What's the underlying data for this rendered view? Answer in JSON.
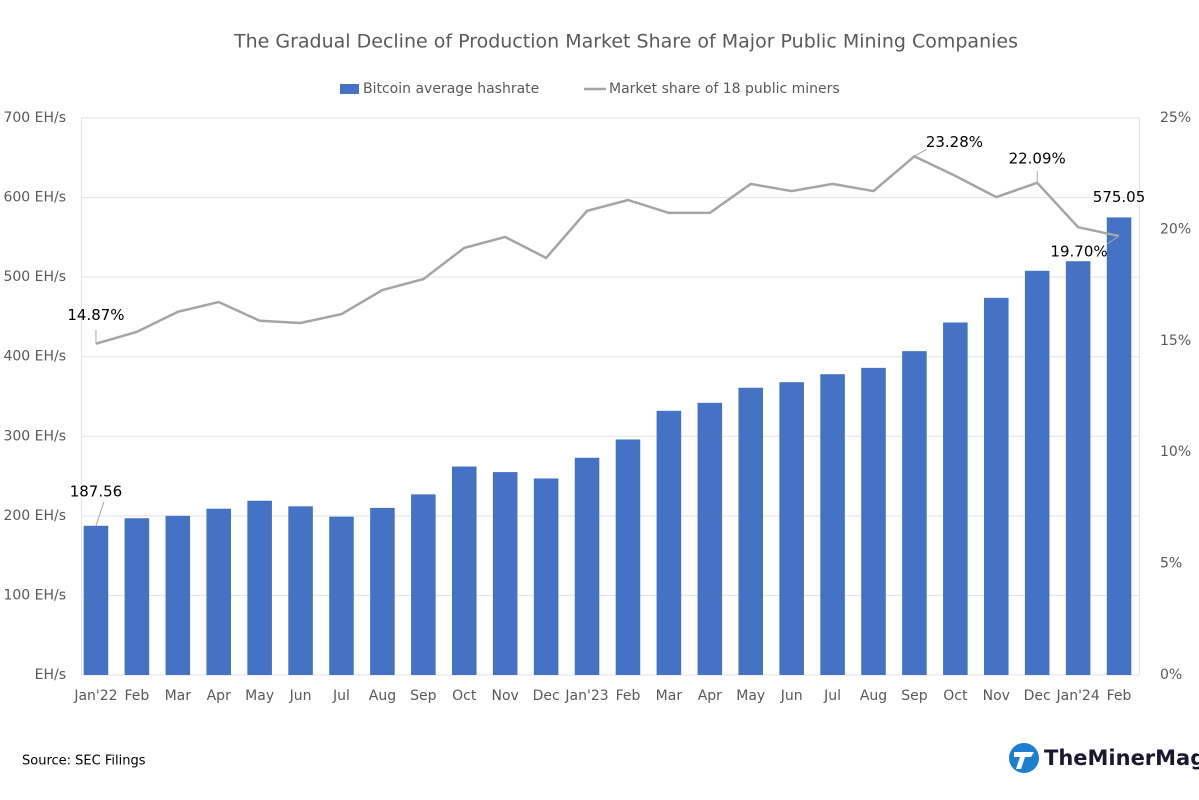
{
  "chart_data": {
    "type": "bar-line",
    "title": "The Gradual Decline of Production Market Share of Major Public Mining Companies",
    "categories": [
      "Jan'22",
      "Feb",
      "Mar",
      "Apr",
      "May",
      "Jun",
      "Jul",
      "Aug",
      "Sep",
      "Oct",
      "Nov",
      "Dec",
      "Jan'23",
      "Feb",
      "Mar",
      "Apr",
      "May",
      "Jun",
      "Jul",
      "Aug",
      "Sep",
      "Oct",
      "Nov",
      "Dec",
      "Jan'24",
      "Feb"
    ],
    "series": [
      {
        "name": "Bitcoin average hashrate",
        "type": "bar",
        "color": "#4472c4",
        "values": [
          187.56,
          197,
          200,
          209,
          219,
          212,
          199,
          210,
          227,
          262,
          255,
          247,
          273,
          296,
          332,
          342,
          361,
          368,
          378,
          386,
          407,
          443,
          474,
          508,
          520,
          575.05
        ],
        "value_labels": [
          "187.56",
          null,
          null,
          null,
          null,
          null,
          null,
          null,
          null,
          null,
          null,
          null,
          null,
          null,
          null,
          null,
          null,
          null,
          null,
          null,
          null,
          null,
          null,
          null,
          null,
          "575.05"
        ]
      },
      {
        "name": "Market share of 18 public miners",
        "type": "line",
        "axis": "y2",
        "color": "#a5a5a5",
        "values": [
          14.87,
          15.4,
          16.3,
          16.74,
          15.9,
          15.8,
          16.2,
          17.28,
          17.77,
          19.17,
          19.66,
          18.72,
          20.83,
          21.32,
          20.74,
          20.74,
          22.04,
          21.72,
          22.04,
          21.72,
          23.28,
          22.4,
          21.45,
          22.09,
          20.1,
          19.7
        ],
        "value_labels": [
          "14.87%",
          null,
          null,
          null,
          null,
          null,
          null,
          null,
          null,
          null,
          null,
          null,
          null,
          null,
          null,
          null,
          null,
          null,
          null,
          null,
          "23.28%",
          null,
          null,
          "22.09%",
          null,
          "19.70%"
        ]
      }
    ],
    "ylim": [
      0,
      700
    ],
    "yticks": [
      {
        "value": 0,
        "label": "EH/s"
      },
      {
        "value": 100,
        "label": "100 EH/s"
      },
      {
        "value": 200,
        "label": "200 EH/s"
      },
      {
        "value": 300,
        "label": "300 EH/s"
      },
      {
        "value": 400,
        "label": "400 EH/s"
      },
      {
        "value": 500,
        "label": "500 EH/s"
      },
      {
        "value": 600,
        "label": "600 EH/s"
      },
      {
        "value": 700,
        "label": "700 EH/s"
      }
    ],
    "y2lim": [
      0,
      25
    ],
    "y2ticks": [
      {
        "value": 0,
        "label": "0%"
      },
      {
        "value": 5,
        "label": "5%"
      },
      {
        "value": 10,
        "label": "10%"
      },
      {
        "value": 15,
        "label": "15%"
      },
      {
        "value": 20,
        "label": "20%"
      },
      {
        "value": 25,
        "label": "25%"
      }
    ],
    "grid": true,
    "legend": "top",
    "source": "Source: SEC Filings",
    "brand": "TheMinerMag"
  }
}
